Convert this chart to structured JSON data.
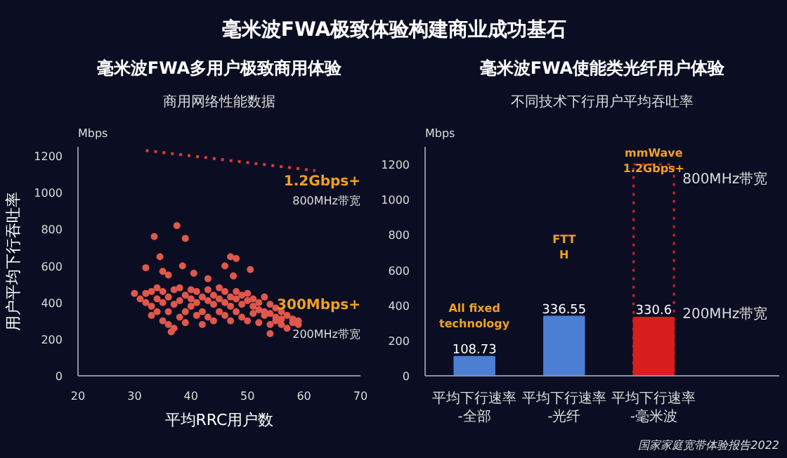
{
  "chart_data": [
    {
      "type": "other",
      "title": "毫米波FWA极致体验构建商业成功基石"
    },
    {
      "type": "scatter",
      "title": "毫米波FWA多用户极致商用体验",
      "subtitle": "商用网络性能数据",
      "xlabel": "平均RRC用户数",
      "ylabel": "用户平均下行吞吐率",
      "xlim": [
        20,
        70
      ],
      "ylim": [
        0,
        1250
      ],
      "xticks": [
        20,
        30,
        40,
        50,
        60,
        70
      ],
      "yticks": [
        0,
        200,
        400,
        600,
        800,
        1000,
        1200
      ],
      "annotations": [
        "Mbps",
        "1.2Gbps+",
        "800MHz带宽",
        "300Mbps+",
        "200MHz带宽"
      ],
      "series": [
        {
          "color": "#e0574b",
          "marker": "circle",
          "x": [
            30,
            31,
            32,
            32,
            33,
            33,
            33,
            34,
            34,
            34,
            35,
            35,
            35,
            36,
            36,
            36,
            37,
            37,
            37,
            38,
            38,
            38,
            39,
            39,
            39,
            40,
            40,
            40,
            41,
            41,
            41,
            42,
            42,
            42,
            43,
            43,
            43,
            44,
            44,
            44,
            45,
            45,
            45,
            46,
            46,
            46,
            47,
            47,
            47,
            48,
            48,
            48,
            49,
            49,
            49,
            50,
            50,
            50,
            51,
            51,
            51,
            52,
            52,
            52,
            53,
            53,
            53,
            54,
            54,
            54,
            55,
            55,
            55,
            56,
            56,
            56,
            57,
            57,
            58,
            58,
            59,
            59,
            32,
            33.5,
            34.5,
            35,
            36,
            37.5,
            39,
            38.5,
            40.5,
            43,
            46,
            47,
            48,
            50.5,
            47.5,
            36.5,
            54
          ],
          "values": [
            450,
            420,
            400,
            450,
            380,
            460,
            330,
            420,
            350,
            480,
            400,
            300,
            460,
            430,
            350,
            280,
            390,
            470,
            260,
            410,
            320,
            480,
            440,
            350,
            290,
            420,
            380,
            470,
            400,
            330,
            460,
            430,
            350,
            280,
            410,
            470,
            320,
            390,
            440,
            300,
            420,
            350,
            480,
            400,
            330,
            460,
            380,
            430,
            300,
            420,
            350,
            460,
            390,
            320,
            440,
            410,
            300,
            450,
            380,
            340,
            420,
            360,
            290,
            400,
            330,
            430,
            350,
            280,
            390,
            340,
            300,
            370,
            320,
            280,
            350,
            310,
            260,
            330,
            290,
            310,
            280,
            300,
            590,
            760,
            650,
            570,
            550,
            820,
            750,
            600,
            560,
            530,
            600,
            650,
            640,
            580,
            545,
            240,
            230
          ]
        },
        {
          "type": "line",
          "color": "#e03a3a",
          "line_style": "dotted",
          "x": [
            32,
            62
          ],
          "values": [
            1230,
            1120
          ]
        }
      ]
    },
    {
      "type": "bar",
      "title": "毫米波FWA使能类光纤用户体验",
      "subtitle": "不同技术下行用户平均吞吐率",
      "ylim": [
        0,
        1300
      ],
      "yticks": [
        0,
        200,
        400,
        600,
        800,
        1000,
        1200
      ],
      "categories": [
        "平均下行速率\n-全部",
        "平均下行速率\n-光纤",
        "平均下行速率\n-毫米波"
      ],
      "series": [
        {
          "values": [
            108.73,
            336.55,
            330.6
          ],
          "value_labels": [
            "108.73",
            "336.55",
            "330.6"
          ],
          "colors": [
            "#4a7fd4",
            "#4a7fd4",
            "#d81e1e"
          ]
        },
        {
          "values": [
            null,
            null,
            1200
          ],
          "color": "#d81e1e",
          "line_style": "dotted"
        }
      ],
      "annotations": [
        "Mbps",
        "All fixed\ntechnology",
        "FTT\nH",
        "mmWave\n1.2Gbps+",
        "800MHz带宽",
        "200MHz带宽",
        "国家家庭宽带体验报告2022"
      ]
    }
  ]
}
